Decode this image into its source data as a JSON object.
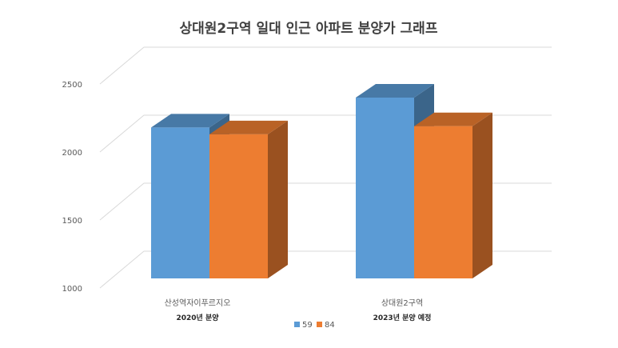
{
  "chart_data": {
    "type": "bar",
    "title": "상대원2구역 일대 인근 아파트 분양가 그래프",
    "categories": [
      "산성역자이푸르지오",
      "상대원2구역"
    ],
    "category_sublabels": [
      "2020년 분양",
      "2023년 분양 예정"
    ],
    "series": [
      {
        "name": "59",
        "values": [
          2180,
          2400
        ],
        "color": "#5B9BD5"
      },
      {
        "name": "84",
        "values": [
          2130,
          2190
        ],
        "color": "#ED7D31"
      }
    ],
    "yticks": [
      "1000",
      "1500",
      "2000",
      "2500"
    ],
    "ylim": [
      1000,
      2500
    ],
    "xlabel": "",
    "ylabel": "",
    "grid": true,
    "legend_position": "bottom",
    "style": "3d-column"
  }
}
